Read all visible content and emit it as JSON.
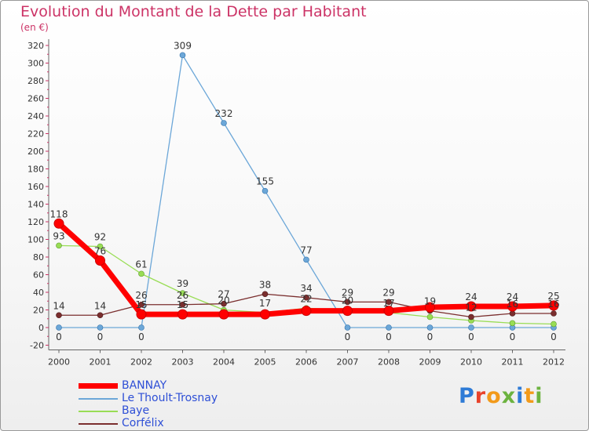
{
  "chart_data": {
    "type": "line",
    "title": "Evolution du Montant de la Dette par Habitant",
    "subtitle": "(en €)",
    "xlabel": "",
    "ylabel": "",
    "x": [
      "2000",
      "2001",
      "2002",
      "2003",
      "2004",
      "2005",
      "2006",
      "2007",
      "2008",
      "2009",
      "2010",
      "2011",
      "2012"
    ],
    "ylim": [
      -20,
      320
    ],
    "yticks": [
      -20,
      0,
      20,
      40,
      60,
      80,
      100,
      120,
      140,
      160,
      180,
      200,
      220,
      240,
      260,
      280,
      300,
      320
    ],
    "grid": false,
    "legend_position": "bottom-left",
    "series": [
      {
        "name": "BANNAY",
        "color": "#ff0000",
        "values": [
          118,
          76,
          15,
          15,
          15,
          15,
          19,
          19,
          19,
          23,
          24,
          24,
          25
        ],
        "labels": [
          "118",
          "76",
          "15",
          "15",
          "",
          "",
          "",
          "",
          "",
          "",
          "24",
          "24",
          "25"
        ]
      },
      {
        "name": "Le Thoult-Trosnay",
        "color": "#6ca7d8",
        "values": [
          0,
          0,
          0,
          309,
          232,
          155,
          77,
          0,
          0,
          0,
          0,
          0,
          0
        ],
        "labels": [
          "0",
          "0",
          "0",
          "309",
          "232",
          "155",
          "77",
          "0",
          "0",
          "0",
          "0",
          "0",
          "0"
        ]
      },
      {
        "name": "Baye",
        "color": "#99dd55",
        "values": [
          93,
          92,
          61,
          39,
          20,
          17,
          22,
          20,
          17,
          12,
          8,
          5,
          4
        ],
        "labels": [
          "93",
          "92",
          "61",
          "39",
          "20",
          "17",
          "22",
          "20",
          "17",
          "",
          "",
          "",
          ""
        ]
      },
      {
        "name": "Corfélix",
        "color": "#7a2e2e",
        "values": [
          14,
          14,
          26,
          26,
          27,
          38,
          34,
          29,
          29,
          19,
          12,
          16,
          16
        ],
        "labels": [
          "14",
          "14",
          "26",
          "26",
          "27",
          "38",
          "34",
          "29",
          "29",
          "19",
          "12",
          "16",
          "16"
        ]
      }
    ]
  },
  "legend": {
    "items": [
      {
        "label": "BANNAY",
        "color": "#ff0000"
      },
      {
        "label": "Le Thoult-Trosnay",
        "color": "#6ca7d8"
      },
      {
        "label": "Baye",
        "color": "#99dd55"
      },
      {
        "label": "Corfélix",
        "color": "#7a2e2e"
      }
    ]
  },
  "logo": {
    "letters": [
      "P",
      "r",
      "o",
      "x",
      "i",
      "t",
      "i"
    ]
  }
}
